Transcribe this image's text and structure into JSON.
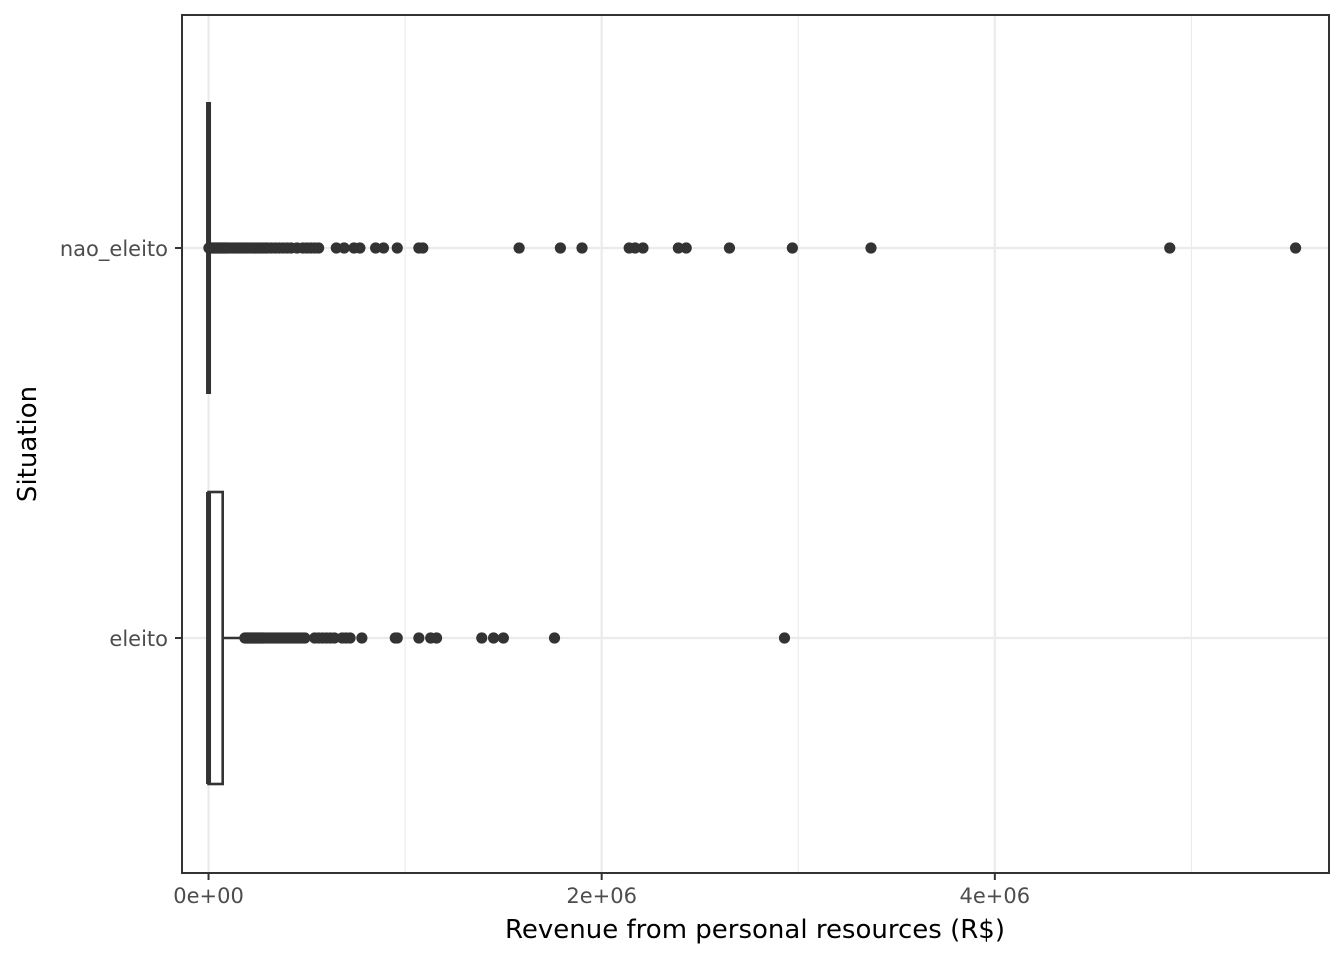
{
  "chart_data": {
    "type": "boxplot",
    "orientation": "horizontal",
    "xlabel": "Revenue from personal resources (R$)",
    "ylabel": "Situation",
    "xlim": [
      -135000,
      5700000
    ],
    "x_ticks": [
      0,
      2000000,
      4000000
    ],
    "x_tick_labels": [
      "0e+00",
      "2e+06",
      "4e+06"
    ],
    "x_minor_ticks": [
      1000000,
      3000000,
      5000000
    ],
    "grid": true,
    "theme_colors": {
      "ink": "#333333",
      "grid": "#ebebeb",
      "tick_text": "#4d4d4d"
    },
    "categories": [
      "eleito",
      "nao_eleito"
    ],
    "series": [
      {
        "category": "eleito",
        "box": {
          "min": 0,
          "q1": 0,
          "median": 0,
          "q3": 72000,
          "max": 180000
        },
        "outliers": [
          185000,
          190000,
          195000,
          200000,
          205000,
          210000,
          215000,
          220000,
          225000,
          230000,
          235000,
          240000,
          245000,
          250000,
          255000,
          260000,
          265000,
          270000,
          275000,
          280000,
          290000,
          300000,
          310000,
          320000,
          330000,
          340000,
          350000,
          360000,
          370000,
          380000,
          390000,
          400000,
          410000,
          420000,
          430000,
          440000,
          450000,
          460000,
          470000,
          480000,
          490000,
          540000,
          560000,
          580000,
          600000,
          620000,
          640000,
          680000,
          700000,
          720000,
          780000,
          950000,
          960000,
          1070000,
          1130000,
          1160000,
          1390000,
          1450000,
          1500000,
          1760000,
          2930000
        ]
      },
      {
        "category": "nao_eleito",
        "box": {
          "min": 0,
          "q1": 0,
          "median": 0,
          "q3": 0,
          "max": 0
        },
        "outliers": [
          2000,
          5000,
          10000,
          15000,
          20000,
          25000,
          30000,
          35000,
          40000,
          45000,
          50000,
          55000,
          60000,
          65000,
          70000,
          75000,
          80000,
          85000,
          90000,
          95000,
          100000,
          110000,
          120000,
          130000,
          140000,
          150000,
          160000,
          170000,
          180000,
          190000,
          200000,
          210000,
          220000,
          230000,
          240000,
          250000,
          260000,
          270000,
          280000,
          290000,
          300000,
          320000,
          340000,
          360000,
          380000,
          400000,
          420000,
          450000,
          480000,
          500000,
          520000,
          540000,
          560000,
          650000,
          690000,
          740000,
          770000,
          850000,
          890000,
          960000,
          1070000,
          1090000,
          1580000,
          1790000,
          1900000,
          2140000,
          2170000,
          2210000,
          2390000,
          2430000,
          2650000,
          2970000,
          3370000,
          4890000,
          5530000
        ]
      }
    ]
  }
}
